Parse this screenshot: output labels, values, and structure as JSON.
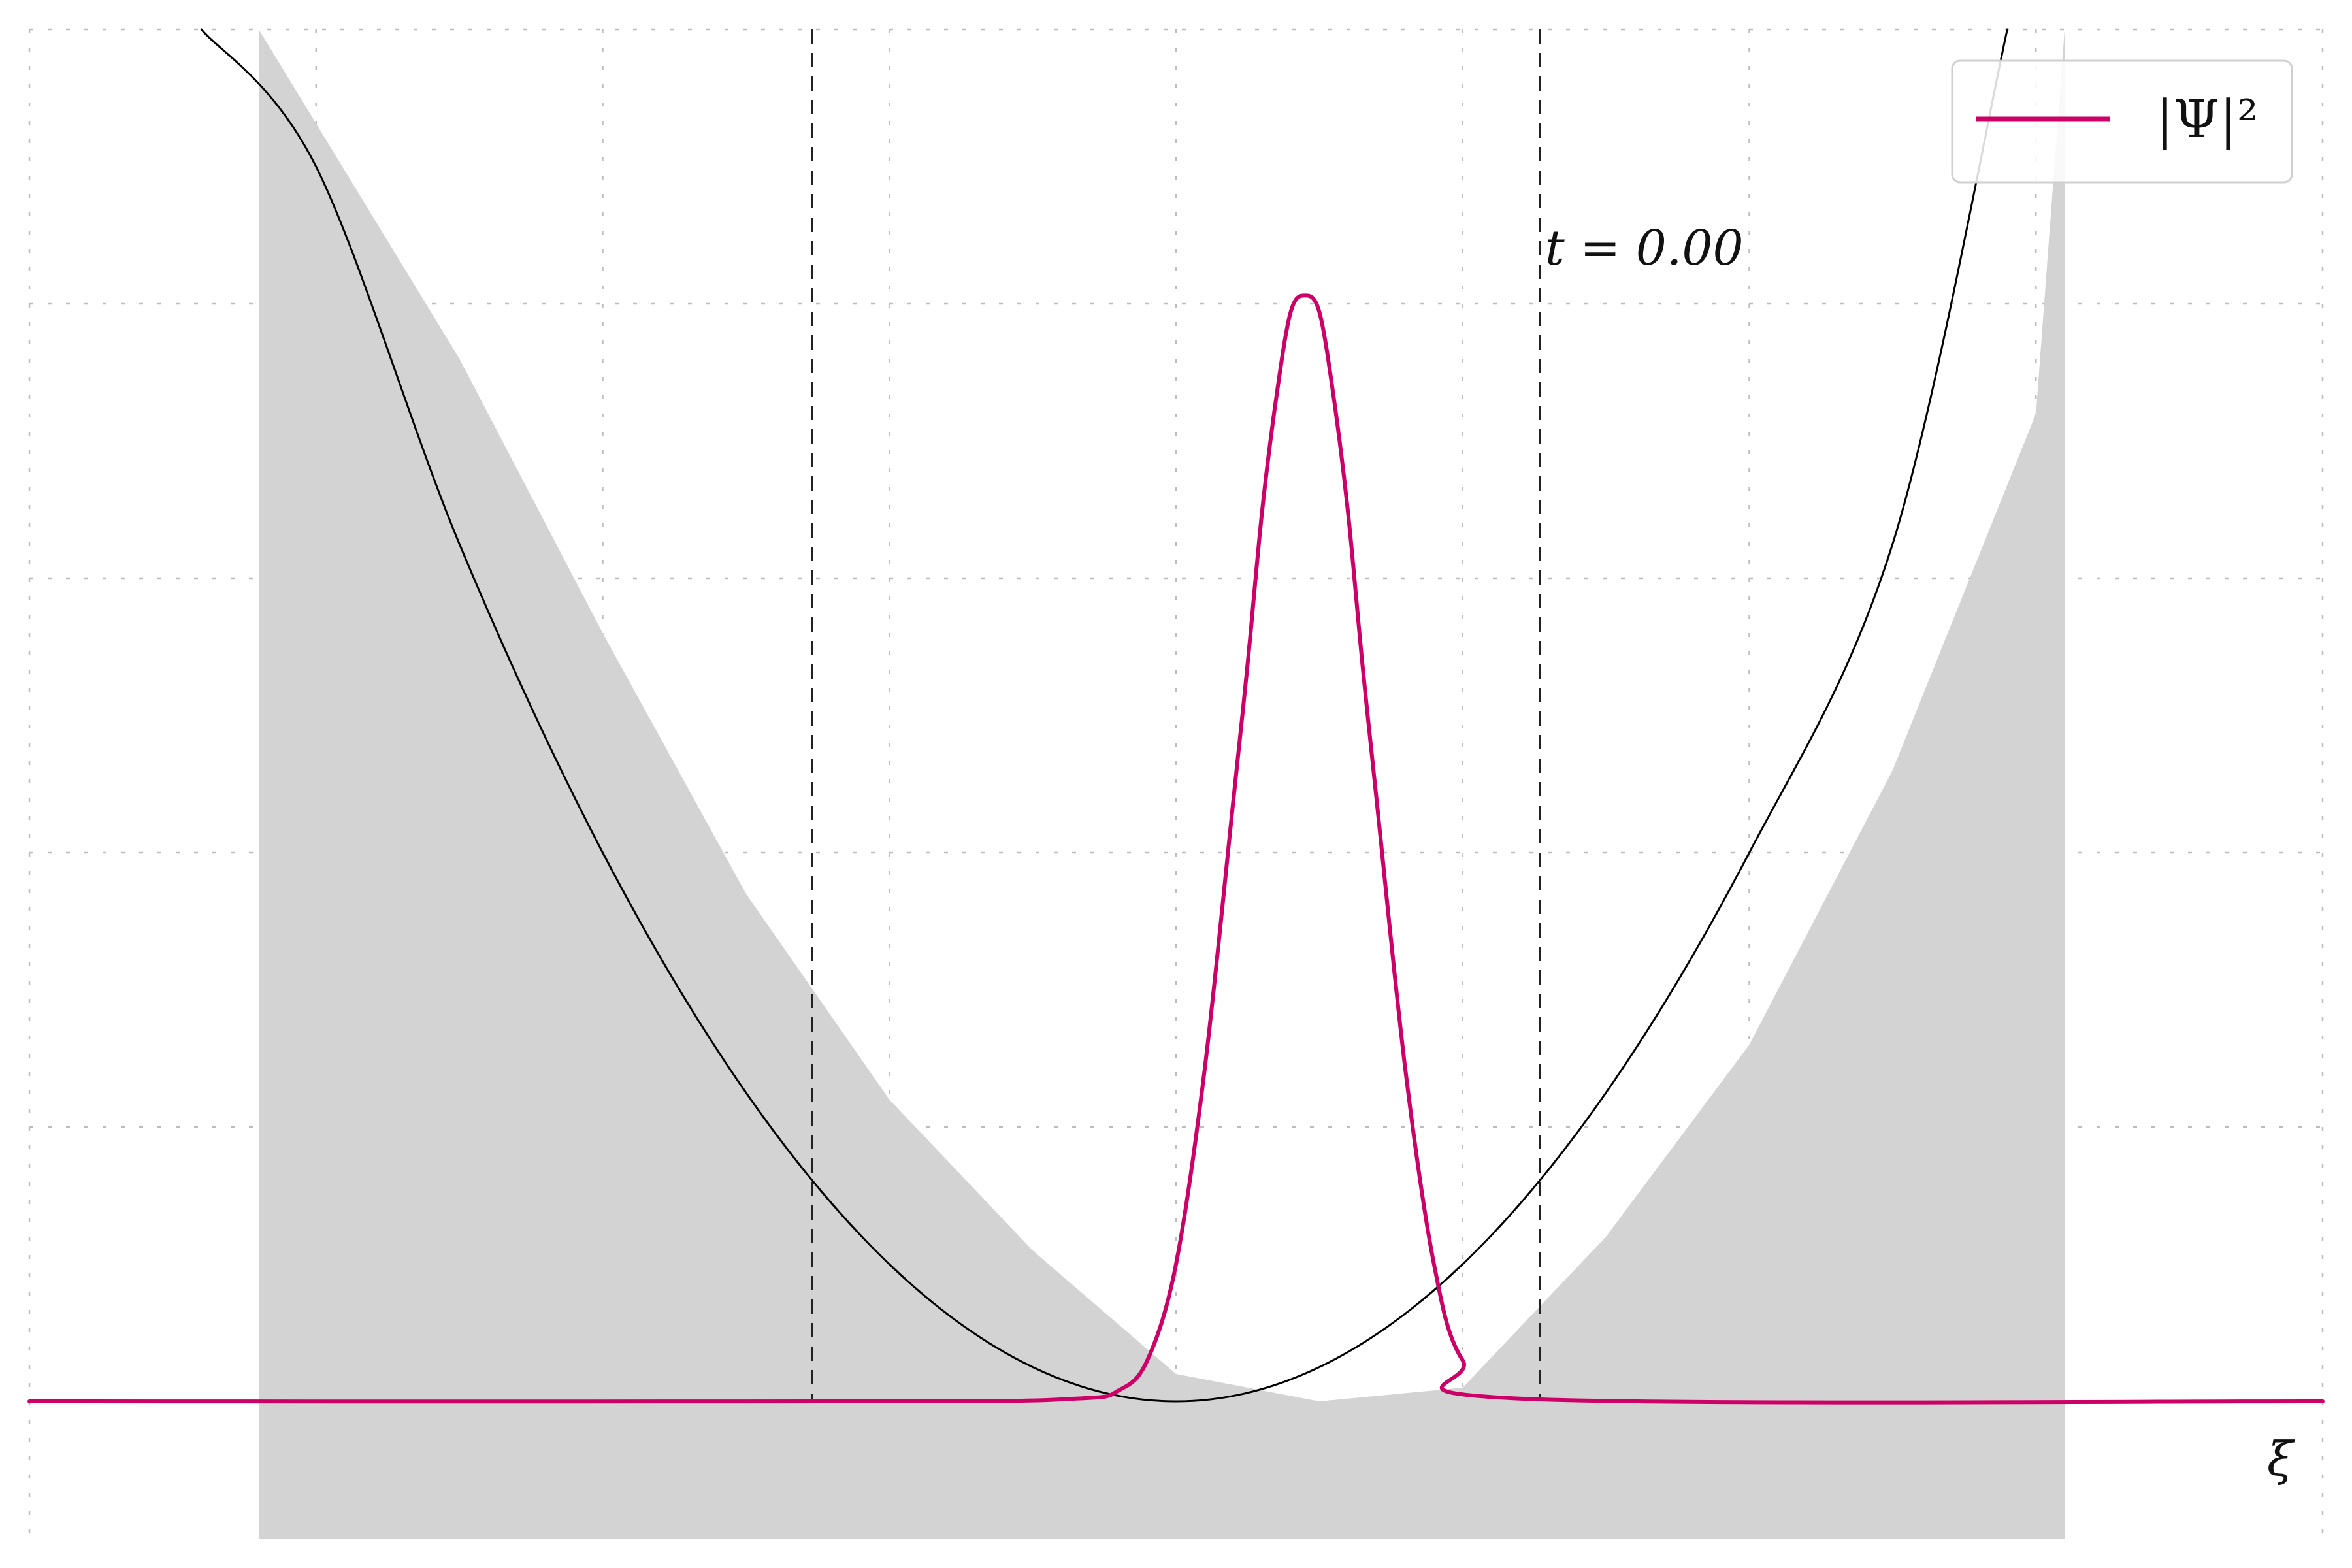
{
  "chart_data": {
    "type": "line",
    "title": "",
    "xlabel": "ξ",
    "ylabel": "",
    "xlim": [
      -4,
      4
    ],
    "ylim": [
      -0.5,
      5.0
    ],
    "grid": true,
    "axes_visible": false,
    "legend_position": "top-right",
    "time_label": "t = 0.00",
    "x_ticks": [
      -4,
      -3,
      -2,
      -1,
      0,
      1,
      2,
      3,
      4
    ],
    "y_ticks": [
      0,
      1,
      2,
      3,
      4,
      5
    ],
    "vlines": [
      -1.27,
      1.27
    ],
    "series": [
      {
        "name": "|Ψ|²",
        "color": "#cc0066",
        "x": [
          -4.0,
          -1.0,
          -0.35,
          -0.2,
          -0.1,
          0.0,
          0.1,
          0.2,
          0.25,
          0.3,
          0.35,
          0.4,
          0.45,
          0.5,
          0.55,
          0.6,
          0.65,
          0.7,
          0.8,
          0.9,
          1.0,
          1.2,
          4.0
        ],
        "values": [
          0.0,
          0.0,
          0.01,
          0.04,
          0.15,
          0.5,
          1.21,
          2.19,
          2.69,
          3.24,
          3.66,
          3.97,
          4.03,
          3.97,
          3.66,
          3.24,
          2.69,
          2.19,
          1.21,
          0.5,
          0.15,
          0.01,
          0.0
        ]
      },
      {
        "name": "",
        "color": "#000000",
        "x": [
          -3.4,
          -3.0,
          -2.5,
          -2.0,
          -1.5,
          -1.0,
          -0.5,
          0.0,
          0.5,
          1.0,
          1.5,
          2.0,
          2.5,
          2.9
        ],
        "values": [
          5.0,
          4.5,
          3.125,
          2.0,
          1.125,
          0.5,
          0.125,
          0.0,
          0.125,
          0.5,
          1.125,
          2.0,
          3.125,
          5.0
        ]
      }
    ],
    "band": {
      "color": "#d3d3d3",
      "x": [
        -3.2,
        -2.5,
        -2.0,
        -1.5,
        -1.0,
        -0.5,
        0.0,
        0.5,
        1.0,
        1.5,
        2.0,
        2.5,
        3.0,
        3.1
      ],
      "upper": [
        5.0,
        3.8,
        2.8,
        1.85,
        1.1,
        0.55,
        0.1,
        0.0,
        0.05,
        0.6,
        1.3,
        2.3,
        3.6,
        5.0
      ],
      "lower": [
        -0.5,
        -0.5,
        -0.5,
        -0.5,
        -0.5,
        -0.5,
        -0.5,
        -0.5,
        -0.5,
        -0.5,
        -0.5,
        -0.5,
        -0.5,
        -0.5
      ]
    }
  }
}
